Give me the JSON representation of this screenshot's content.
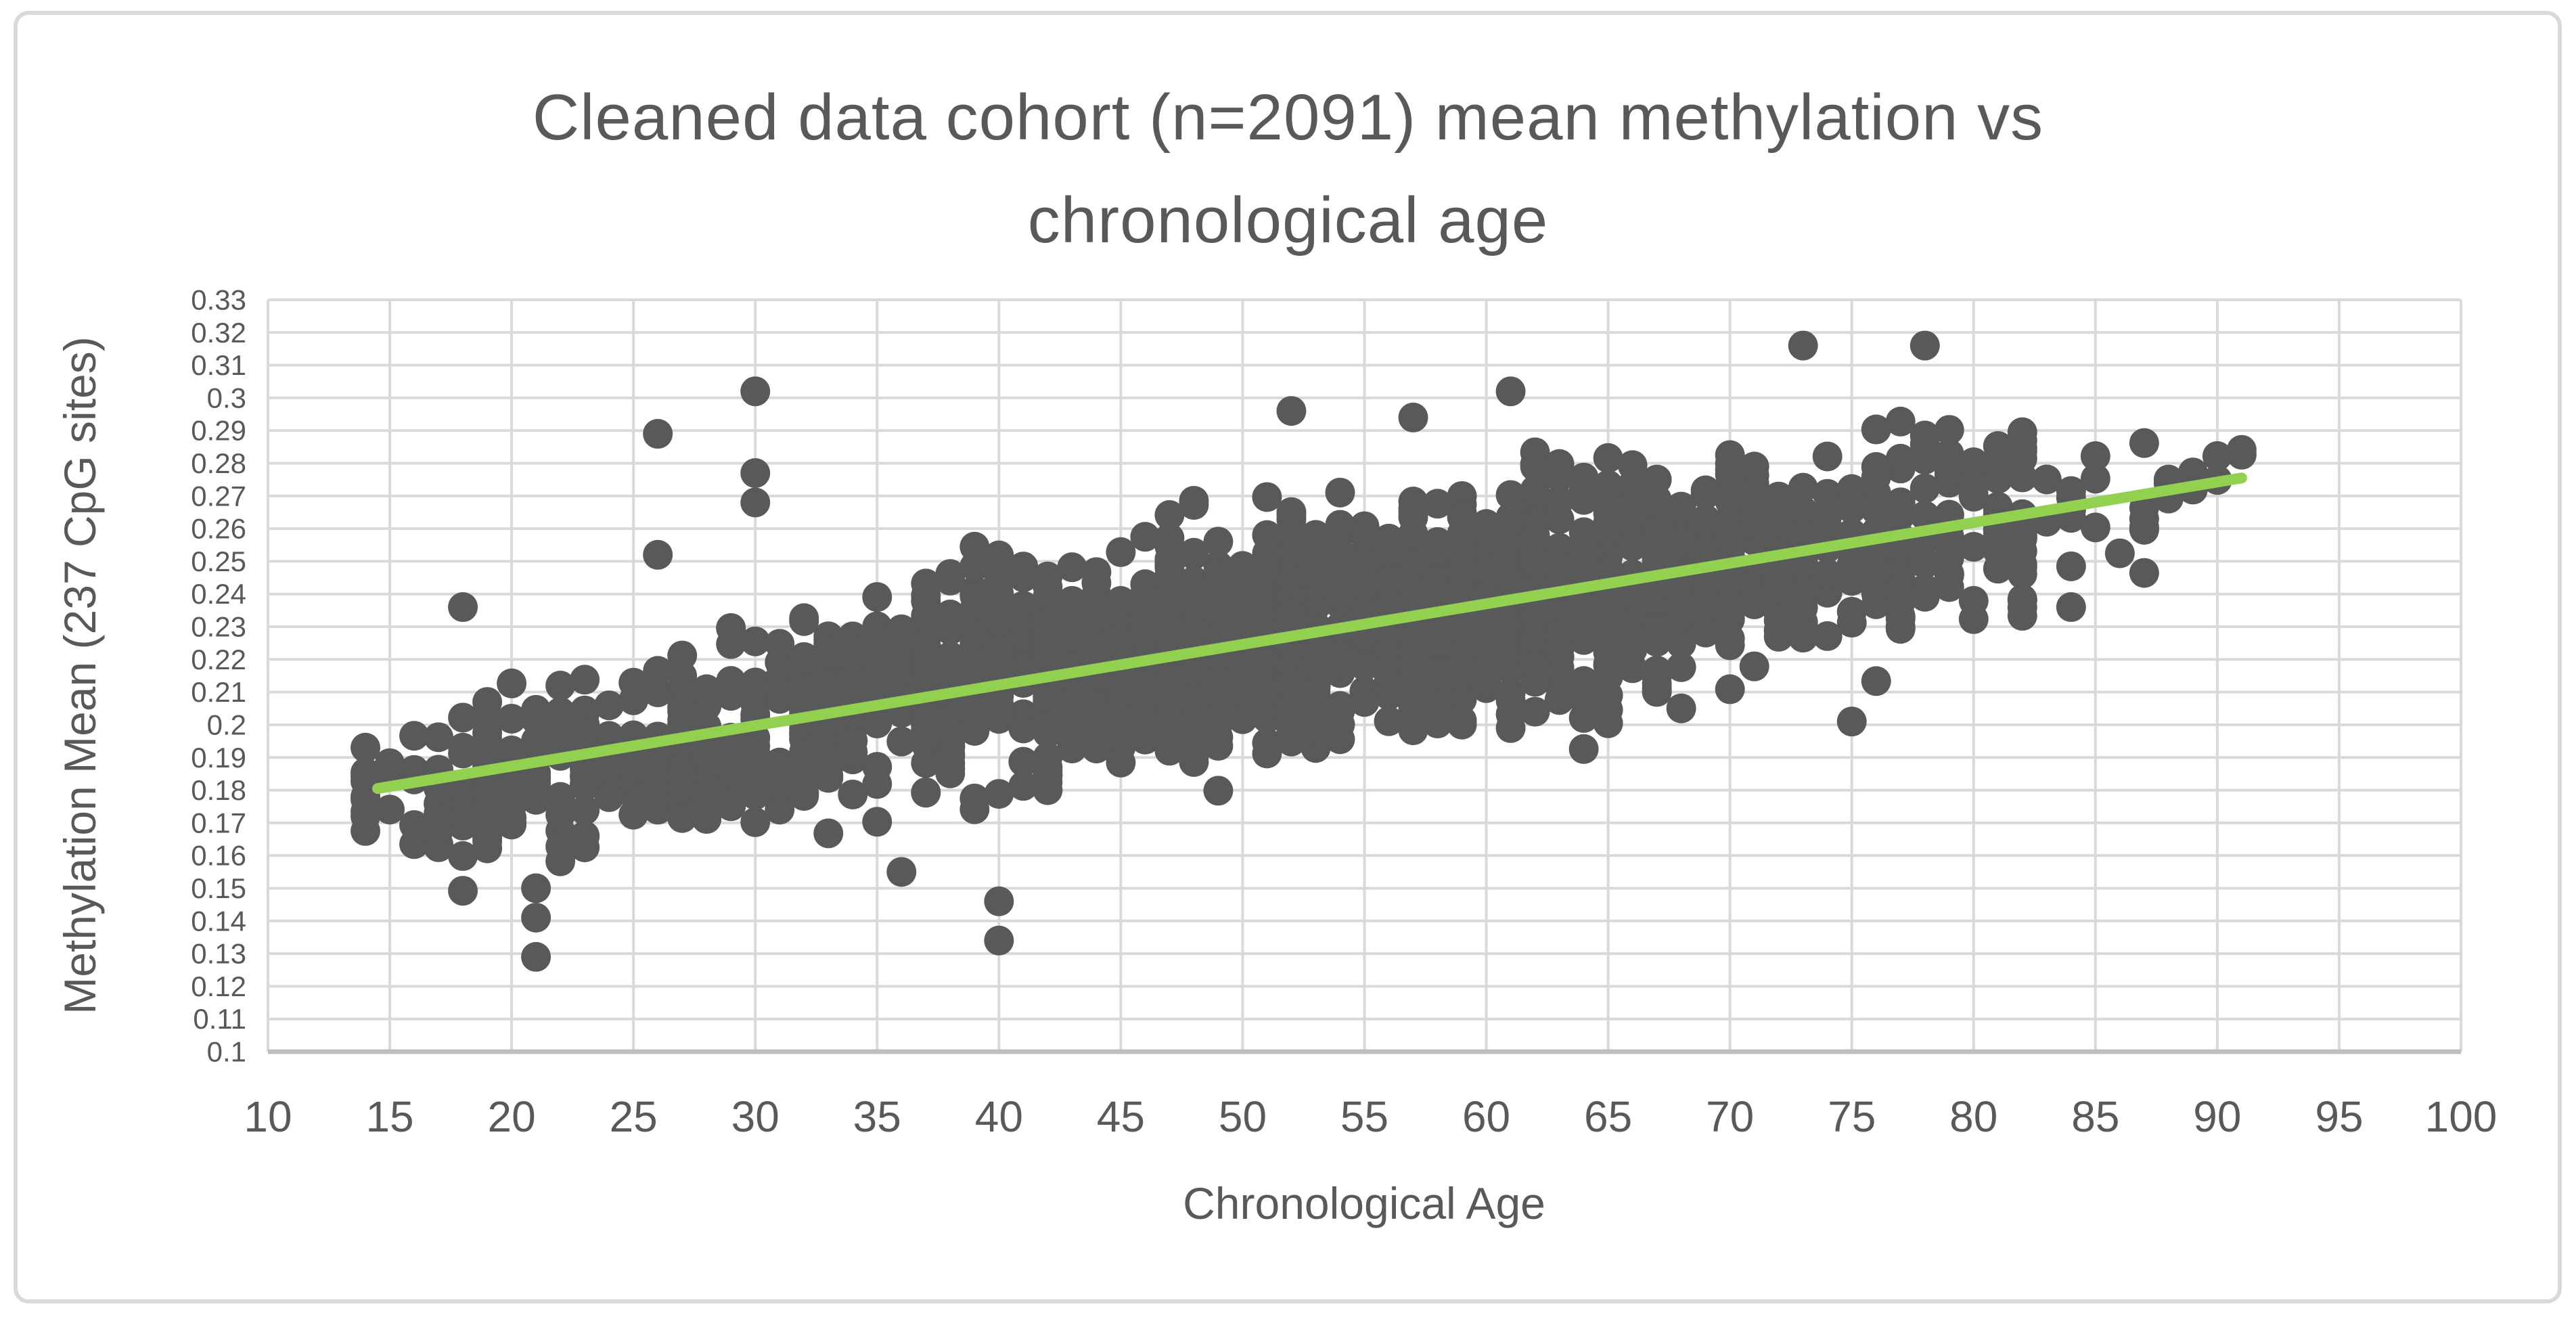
{
  "header": {
    "title_line1": "Cleaned data cohort (n=2091) mean methylation vs",
    "title_line2": "chronological age"
  },
  "colors": {
    "text": "#595959",
    "grid": "#D9D9D9",
    "axis_line": "#BFBFBF",
    "frame_border": "#D9D9D9",
    "background": "#FFFFFF",
    "marker": "#595959",
    "trendline": "#92D050"
  },
  "chart_data": {
    "type": "scatter",
    "title": "Cleaned data cohort (n=2091) mean methylation vs chronological age",
    "xlabel": "Chronological Age",
    "ylabel": "Methylation Mean (237 CpG sites)",
    "xlim": [
      10,
      100
    ],
    "ylim": [
      0.1,
      0.33
    ],
    "x_tick_labels": [
      "10",
      "15",
      "20",
      "25",
      "30",
      "35",
      "40",
      "45",
      "50",
      "55",
      "60",
      "65",
      "70",
      "75",
      "80",
      "85",
      "90",
      "95",
      "100"
    ],
    "y_tick_labels": [
      "0.1",
      "0.11",
      "0.12",
      "0.13",
      "0.14",
      "0.15",
      "0.16",
      "0.17",
      "0.18",
      "0.19",
      "0.2",
      "0.21",
      "0.22",
      "0.23",
      "0.24",
      "0.25",
      "0.26",
      "0.27",
      "0.28",
      "0.29",
      "0.3",
      "0.31",
      "0.32",
      "0.33"
    ],
    "grid": true,
    "legend_position": "none",
    "n_points": 2091,
    "marker_color": "#595959",
    "age_range_observed": [
      14,
      91
    ],
    "trendline": {
      "color": "#92D050",
      "x1": 14.5,
      "y1": 0.1805,
      "x2": 91.0,
      "y2": 0.2755,
      "slope_per_year": 0.00124,
      "intercept": 0.1625
    },
    "featured_points": [
      [
        14,
        0.193
      ],
      [
        14,
        0.172
      ],
      [
        18,
        0.236
      ],
      [
        21,
        0.129
      ],
      [
        21,
        0.141
      ],
      [
        21,
        0.15
      ],
      [
        26,
        0.289
      ],
      [
        26,
        0.252
      ],
      [
        30,
        0.302
      ],
      [
        30,
        0.277
      ],
      [
        30,
        0.268
      ],
      [
        36,
        0.155
      ],
      [
        40,
        0.134
      ],
      [
        40,
        0.146
      ],
      [
        52,
        0.296
      ],
      [
        57,
        0.294
      ],
      [
        61,
        0.302
      ],
      [
        73,
        0.316
      ],
      [
        78,
        0.316
      ],
      [
        75,
        0.201
      ],
      [
        84,
        0.236
      ]
    ],
    "point_cloud_bands": [
      {
        "age_min": 14,
        "age_max": 16,
        "count": 16,
        "y_mean": 0.178,
        "y_sd": 0.009
      },
      {
        "age_min": 17,
        "age_max": 19,
        "count": 38,
        "y_mean": 0.181,
        "y_sd": 0.011
      },
      {
        "age_min": 19,
        "age_max": 23,
        "count": 75,
        "y_mean": 0.184,
        "y_sd": 0.013
      },
      {
        "age_min": 23,
        "age_max": 27,
        "count": 55,
        "y_mean": 0.191,
        "y_sd": 0.012
      },
      {
        "age_min": 27,
        "age_max": 32,
        "count": 95,
        "y_mean": 0.198,
        "y_sd": 0.014
      },
      {
        "age_min": 32,
        "age_max": 37,
        "count": 140,
        "y_mean": 0.207,
        "y_sd": 0.015
      },
      {
        "age_min": 37,
        "age_max": 42,
        "count": 170,
        "y_mean": 0.213,
        "y_sd": 0.015
      },
      {
        "age_min": 42,
        "age_max": 47,
        "count": 200,
        "y_mean": 0.219,
        "y_sd": 0.015
      },
      {
        "age_min": 47,
        "age_max": 52,
        "count": 245,
        "y_mean": 0.2245,
        "y_sd": 0.017
      },
      {
        "age_min": 52,
        "age_max": 57,
        "count": 245,
        "y_mean": 0.23,
        "y_sd": 0.017
      },
      {
        "age_min": 57,
        "age_max": 62,
        "count": 230,
        "y_mean": 0.2365,
        "y_sd": 0.017
      },
      {
        "age_min": 62,
        "age_max": 67,
        "count": 200,
        "y_mean": 0.2425,
        "y_sd": 0.017
      },
      {
        "age_min": 67,
        "age_max": 72,
        "count": 150,
        "y_mean": 0.249,
        "y_sd": 0.016
      },
      {
        "age_min": 72,
        "age_max": 77,
        "count": 100,
        "y_mean": 0.255,
        "y_sd": 0.015
      },
      {
        "age_min": 77,
        "age_max": 82,
        "count": 78,
        "y_mean": 0.262,
        "y_sd": 0.014
      },
      {
        "age_min": 82,
        "age_max": 87,
        "count": 22,
        "y_mean": 0.26,
        "y_sd": 0.012
      },
      {
        "age_min": 87,
        "age_max": 91,
        "count": 11,
        "y_mean": 0.272,
        "y_sd": 0.005
      }
    ],
    "y_clip": [
      0.128,
      0.318
    ],
    "seed": 20910
  }
}
